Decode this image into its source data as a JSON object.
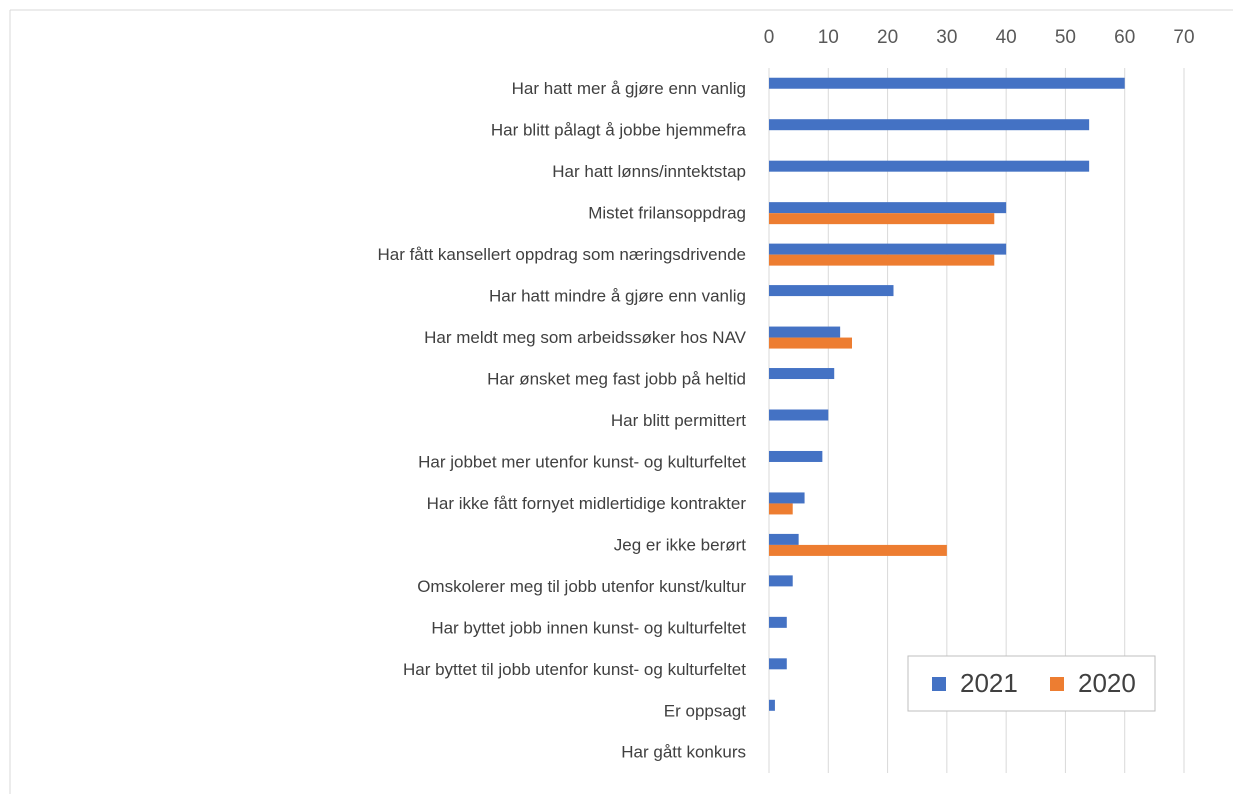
{
  "chart_data": {
    "type": "barh",
    "categories": [
      "Har hatt mer å gjøre enn vanlig",
      "Har blitt pålagt å jobbe hjemmefra",
      "Har hatt lønns/inntektstap",
      "Mistet frilansoppdrag",
      "Har fått kansellert oppdrag som næringsdrivende",
      "Har hatt mindre å gjøre enn vanlig",
      "Har meldt meg som arbeidssøker hos NAV",
      "Har ønsket meg fast jobb på heltid",
      "Har blitt permittert",
      "Har jobbet mer utenfor kunst- og kulturfeltet",
      "Har ikke fått fornyet midlertidige kontrakter",
      "Jeg er ikke berørt",
      "Omskolerer meg til jobb utenfor kunst/kultur",
      "Har byttet jobb innen kunst- og kulturfeltet",
      "Har byttet til jobb utenfor kunst- og kulturfeltet",
      "Er oppsagt",
      "Har gått konkurs"
    ],
    "series": [
      {
        "name": "2021",
        "color": "#4472c4",
        "values": [
          60,
          54,
          54,
          40,
          40,
          21,
          12,
          11,
          10,
          9,
          6,
          5,
          4,
          3,
          3,
          1,
          0
        ]
      },
      {
        "name": "2020",
        "color": "#ed7d31",
        "values": [
          null,
          null,
          null,
          38,
          38,
          null,
          14,
          null,
          null,
          null,
          4,
          30,
          null,
          null,
          null,
          null,
          null
        ]
      }
    ],
    "xlim": [
      0,
      70
    ],
    "xticks": [
      0,
      10,
      20,
      30,
      40,
      50,
      60,
      70
    ],
    "grid": true,
    "legend": "lower right"
  }
}
